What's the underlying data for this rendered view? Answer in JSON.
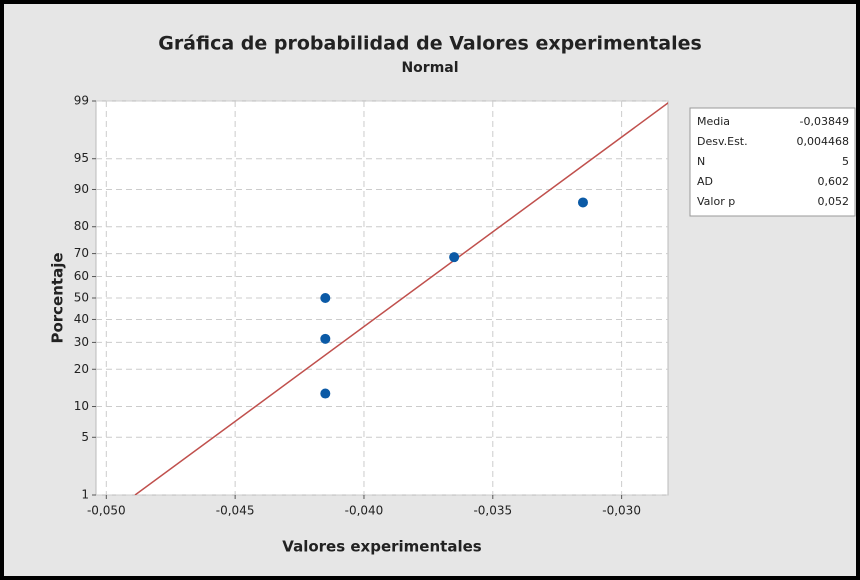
{
  "chart_data": {
    "type": "probability",
    "title": "Gráfica de probabilidad de Valores experimentales",
    "subtitle": "Normal",
    "x_label": "Valores experimentales",
    "y_label": "Porcentaje",
    "x": [
      -0.0415,
      -0.0415,
      -0.0415,
      -0.0365,
      -0.0315
    ],
    "values": [
      12.96,
      31.48,
      50,
      68.52,
      87.04
    ],
    "color": "#0b5aa6",
    "line_color": "#c0504d",
    "xlim": [
      -0.0504,
      -0.0282
    ],
    "xticks": [
      {
        "value": -0.05,
        "label": "-0,050"
      },
      {
        "value": -0.045,
        "label": "-0,045"
      },
      {
        "value": -0.04,
        "label": "-0,040"
      },
      {
        "value": -0.035,
        "label": "-0,035"
      },
      {
        "value": -0.03,
        "label": "-0,030"
      }
    ],
    "ylim": [
      1,
      99
    ],
    "yticks": [
      1,
      5,
      10,
      20,
      30,
      40,
      50,
      60,
      70,
      80,
      90,
      95,
      99
    ],
    "grid": true,
    "stats": [
      {
        "name": "Media",
        "value": -0.03849,
        "label": "-0,03849"
      },
      {
        "name": "Desv.Est.",
        "value": 0.004468,
        "label": "0,004468"
      },
      {
        "name": "N",
        "value": 5
      },
      {
        "name": "AD",
        "value": 0.602,
        "label": "0,602"
      },
      {
        "name": "Valor p",
        "value": 0.052,
        "label": "0,052"
      }
    ]
  }
}
